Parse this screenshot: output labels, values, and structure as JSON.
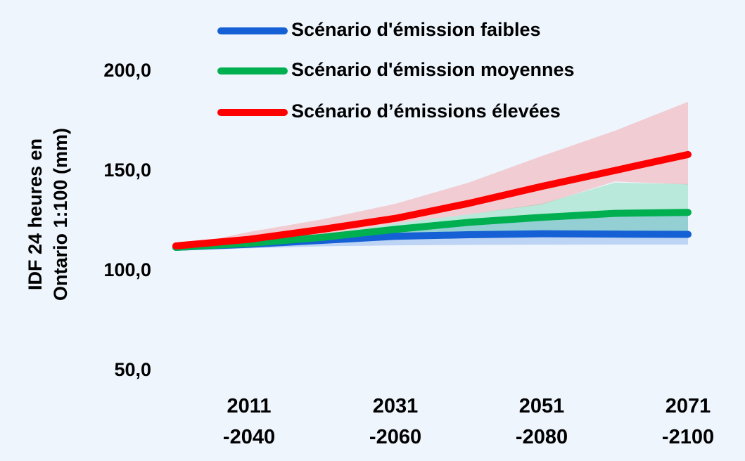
{
  "chart_data": {
    "type": "line",
    "y_label": [
      "IDF 24 heures en",
      "Ontario 1:100 (mm)"
    ],
    "categories": [
      null,
      "2011\n-2040",
      null,
      "2031\n-2060",
      null,
      "2051\n-2080",
      null,
      "2071\n-2100"
    ],
    "ylim": [
      50,
      200
    ],
    "yticks": [
      {
        "value": 50,
        "label": "50,0"
      },
      {
        "value": 100,
        "label": "100,0"
      },
      {
        "value": 150,
        "label": "150,0"
      },
      {
        "value": 200,
        "label": "200,0"
      }
    ],
    "grid": false,
    "legend": "top",
    "series": [
      {
        "name": "Scénario d'émission faibles",
        "color": "#1560d4",
        "band_color": "#1560d4",
        "values": [
          112,
          113.5,
          115.5,
          117.5,
          118.3,
          118.8,
          118.6,
          118.5
        ],
        "upper": [
          112,
          114,
          117,
          121,
          124,
          126.5,
          128.5,
          129
        ],
        "lower": [
          110.5,
          111.5,
          112.5,
          113,
          113.2,
          113.3,
          113.4,
          113.4
        ]
      },
      {
        "name": "Scénario d'émission moyennes",
        "color": "#00b050",
        "band_color": "#00c060",
        "values": [
          112,
          114,
          117,
          121,
          124.5,
          127,
          129,
          129.5
        ],
        "upper": [
          112,
          114.5,
          118,
          124,
          128.5,
          133.8,
          144.4,
          143.7
        ],
        "lower": [
          111,
          113,
          115.5,
          118,
          119,
          119.5,
          119.5,
          119
        ]
      },
      {
        "name": "Scénario d’émissions élevées",
        "color": "#ff0000",
        "band_color": "#ff4040",
        "values": [
          112.7,
          116,
          121,
          126.5,
          134,
          142.5,
          150.5,
          158.5
        ],
        "upper": [
          112,
          119.7,
          126,
          133.8,
          144.4,
          157.7,
          170.4,
          184.9
        ],
        "lower": [
          111.5,
          114,
          118,
          124,
          128.5,
          133.5,
          145,
          143.5
        ]
      }
    ]
  }
}
